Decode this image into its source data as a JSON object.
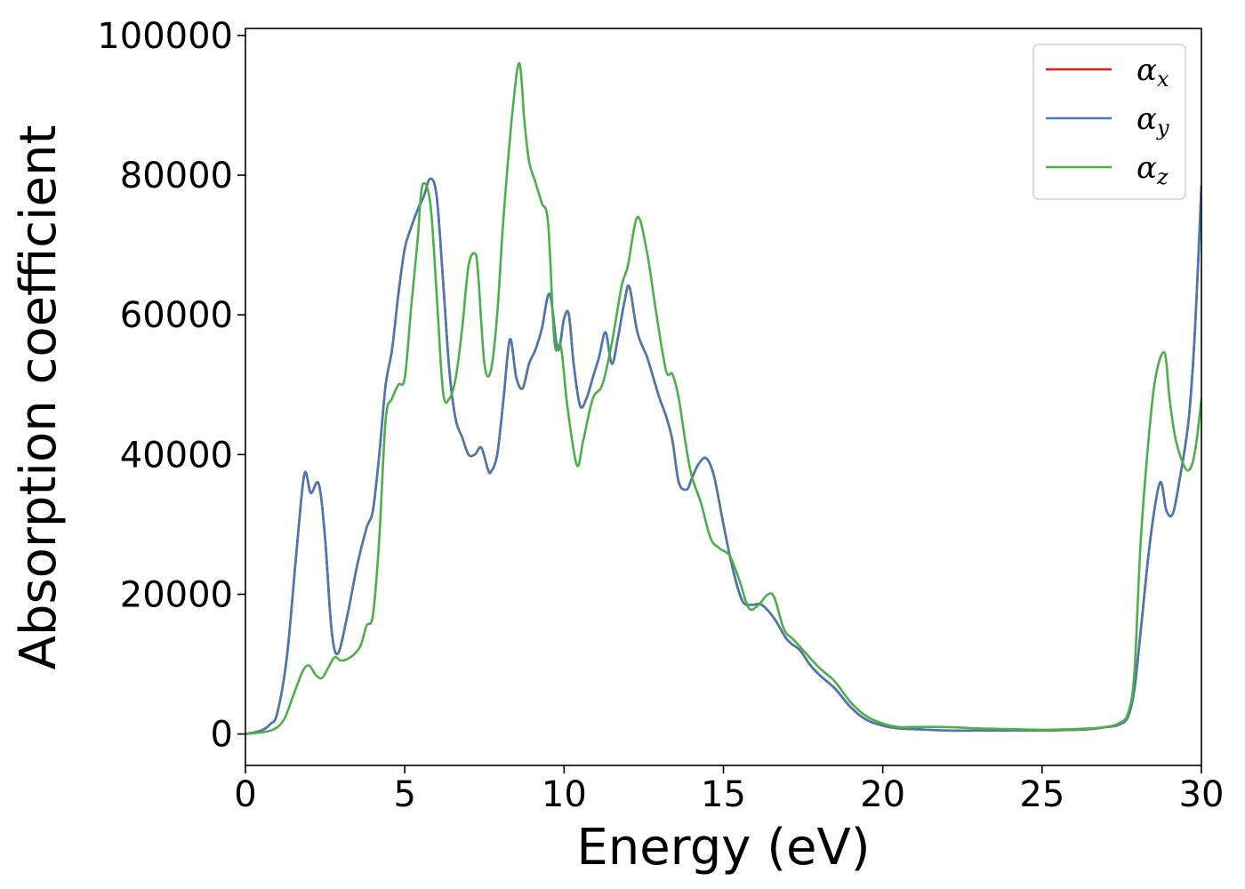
{
  "chart_data": {
    "type": "line",
    "title": "",
    "xlabel": "Energy (eV)",
    "ylabel": "Absorption coefficient",
    "xlim": [
      0,
      30
    ],
    "ylim": [
      -4500,
      101000
    ],
    "xticks": [
      0,
      5,
      10,
      15,
      20,
      25,
      30
    ],
    "yticks": [
      0,
      20000,
      40000,
      60000,
      80000,
      100000
    ],
    "grid": false,
    "legend_position": "top-right",
    "series": [
      {
        "name": "α",
        "subscript": "x",
        "color": "#e41a1c",
        "x": [
          0,
          0.5,
          0.8,
          1.0,
          1.3,
          1.6,
          1.85,
          2.05,
          2.3,
          2.5,
          2.7,
          2.9,
          3.2,
          3.5,
          3.8,
          4.0,
          4.2,
          4.4,
          4.6,
          4.8,
          5.0,
          5.2,
          5.4,
          5.6,
          5.8,
          6.0,
          6.2,
          6.4,
          6.6,
          6.8,
          7.0,
          7.2,
          7.4,
          7.6,
          7.7,
          7.9,
          8.1,
          8.3,
          8.5,
          8.7,
          8.9,
          9.1,
          9.3,
          9.55,
          9.8,
          10.0,
          10.15,
          10.3,
          10.5,
          10.7,
          10.9,
          11.1,
          11.3,
          11.5,
          11.7,
          11.9,
          12.05,
          12.3,
          12.6,
          12.8,
          13.0,
          13.2,
          13.4,
          13.6,
          13.85,
          14.0,
          14.2,
          14.45,
          14.7,
          15.0,
          15.3,
          15.6,
          15.9,
          16.2,
          16.6,
          17.0,
          17.4,
          17.7,
          18.0,
          18.5,
          19.0,
          19.5,
          20.0,
          20.5,
          21.0,
          22.0,
          23.0,
          24.0,
          25.0,
          26.0,
          26.5,
          27.0,
          27.4,
          27.7,
          27.9,
          28.1,
          28.4,
          28.7,
          28.9,
          29.1,
          29.3,
          29.6,
          29.8,
          30.0
        ],
        "y": [
          0,
          500,
          1500,
          3000,
          11000,
          26000,
          37200,
          34500,
          35800,
          28000,
          15000,
          11500,
          17000,
          24000,
          29500,
          32000,
          40000,
          50000,
          55000,
          63000,
          69500,
          72500,
          75000,
          77000,
          79500,
          77000,
          65000,
          52000,
          45000,
          42500,
          40000,
          40000,
          41000,
          38000,
          37500,
          40000,
          48000,
          56500,
          51000,
          49500,
          53000,
          55000,
          58000,
          63000,
          55000,
          59500,
          60000,
          53000,
          47000,
          48000,
          51000,
          54000,
          57500,
          53000,
          57000,
          62000,
          64000,
          57500,
          54000,
          51000,
          48000,
          45500,
          42000,
          36000,
          35000,
          36500,
          38500,
          39500,
          37000,
          30000,
          23500,
          19000,
          18500,
          18500,
          16500,
          13500,
          12000,
          10000,
          8500,
          6500,
          3800,
          2000,
          1200,
          800,
          700,
          500,
          500,
          500,
          500,
          600,
          700,
          1000,
          1300,
          2500,
          6500,
          15000,
          28000,
          36000,
          32000,
          31500,
          36000,
          45000,
          58000,
          78500
        ]
      },
      {
        "name": "α",
        "subscript": "y",
        "color": "#4779b2",
        "x": [
          0,
          0.5,
          0.8,
          1.0,
          1.3,
          1.6,
          1.85,
          2.05,
          2.3,
          2.5,
          2.7,
          2.9,
          3.2,
          3.5,
          3.8,
          4.0,
          4.2,
          4.4,
          4.6,
          4.8,
          5.0,
          5.2,
          5.4,
          5.6,
          5.8,
          6.0,
          6.2,
          6.4,
          6.6,
          6.8,
          7.0,
          7.2,
          7.4,
          7.6,
          7.7,
          7.9,
          8.1,
          8.3,
          8.5,
          8.7,
          8.9,
          9.1,
          9.3,
          9.55,
          9.8,
          10.0,
          10.15,
          10.3,
          10.5,
          10.7,
          10.9,
          11.1,
          11.3,
          11.5,
          11.7,
          11.9,
          12.05,
          12.3,
          12.6,
          12.8,
          13.0,
          13.2,
          13.4,
          13.6,
          13.85,
          14.0,
          14.2,
          14.45,
          14.7,
          15.0,
          15.3,
          15.6,
          15.9,
          16.2,
          16.6,
          17.0,
          17.4,
          17.7,
          18.0,
          18.5,
          19.0,
          19.5,
          20.0,
          20.5,
          21.0,
          22.0,
          23.0,
          24.0,
          25.0,
          26.0,
          26.5,
          27.0,
          27.4,
          27.7,
          27.9,
          28.1,
          28.4,
          28.7,
          28.9,
          29.1,
          29.3,
          29.6,
          29.8,
          30.0
        ],
        "y": [
          0,
          500,
          1500,
          3000,
          11000,
          26000,
          37200,
          34500,
          35800,
          28000,
          15000,
          11500,
          17000,
          24000,
          29500,
          32000,
          40000,
          50000,
          55000,
          63000,
          69500,
          72500,
          75000,
          77000,
          79500,
          77000,
          65000,
          52000,
          45000,
          42500,
          40000,
          40000,
          41000,
          38000,
          37500,
          40000,
          48000,
          56500,
          51000,
          49500,
          53000,
          55000,
          58000,
          63000,
          55000,
          59500,
          60000,
          53000,
          47000,
          48000,
          51000,
          54000,
          57500,
          53000,
          57000,
          62000,
          64000,
          57500,
          54000,
          51000,
          48000,
          45500,
          42000,
          36000,
          35000,
          36500,
          38500,
          39500,
          37000,
          30000,
          23500,
          19000,
          18500,
          18500,
          16500,
          13500,
          12000,
          10000,
          8500,
          6500,
          3800,
          2000,
          1200,
          800,
          700,
          500,
          500,
          500,
          500,
          600,
          700,
          1000,
          1300,
          2500,
          6500,
          15000,
          28000,
          36000,
          32000,
          31500,
          36000,
          45000,
          58000,
          78500
        ]
      },
      {
        "name": "α",
        "subscript": "z",
        "color": "#4daf4a",
        "x": [
          0,
          0.8,
          1.2,
          1.5,
          1.8,
          2.0,
          2.2,
          2.4,
          2.6,
          2.8,
          3.0,
          3.3,
          3.6,
          3.8,
          4.0,
          4.2,
          4.4,
          4.6,
          4.8,
          5.0,
          5.2,
          5.4,
          5.55,
          5.8,
          6.0,
          6.2,
          6.4,
          6.6,
          6.8,
          7.0,
          7.2,
          7.3,
          7.5,
          7.7,
          7.9,
          8.1,
          8.4,
          8.6,
          8.75,
          8.9,
          9.1,
          9.3,
          9.5,
          9.7,
          9.9,
          10.1,
          10.4,
          10.6,
          10.9,
          11.2,
          11.5,
          11.8,
          12.0,
          12.3,
          12.6,
          12.9,
          13.2,
          13.4,
          13.6,
          13.8,
          14.0,
          14.3,
          14.6,
          14.9,
          15.2,
          15.5,
          15.8,
          16.1,
          16.4,
          16.6,
          16.9,
          17.2,
          17.6,
          18.0,
          18.5,
          19.0,
          19.5,
          20.0,
          20.5,
          21.0,
          22.0,
          23.0,
          24.0,
          25.0,
          26.0,
          26.5,
          27.0,
          27.4,
          27.7,
          27.9,
          28.1,
          28.4,
          28.6,
          28.85,
          29.0,
          29.2,
          29.5,
          29.7,
          29.85,
          30.0
        ],
        "y": [
          0,
          500,
          2000,
          5500,
          9000,
          9800,
          8500,
          8000,
          9500,
          11000,
          10500,
          11000,
          12500,
          15500,
          17000,
          28000,
          45000,
          48000,
          50000,
          51000,
          61000,
          70500,
          78500,
          76000,
          63000,
          49000,
          48000,
          51000,
          58000,
          67000,
          68800,
          66000,
          53000,
          52000,
          60000,
          74000,
          90000,
          96000,
          88000,
          82000,
          79000,
          76000,
          73000,
          56000,
          55500,
          47000,
          38500,
          42000,
          48000,
          50000,
          56000,
          64000,
          67000,
          74000,
          69000,
          60000,
          52000,
          51500,
          48000,
          42000,
          37000,
          33000,
          28000,
          26500,
          25500,
          22000,
          18000,
          18500,
          20000,
          19500,
          15000,
          13500,
          11500,
          9500,
          7500,
          4500,
          2500,
          1500,
          1000,
          1000,
          1000,
          800,
          700,
          600,
          700,
          800,
          1000,
          1500,
          3000,
          9000,
          28000,
          45000,
          52000,
          54500,
          48000,
          42000,
          38000,
          38500,
          42000,
          48000
        ]
      }
    ]
  }
}
